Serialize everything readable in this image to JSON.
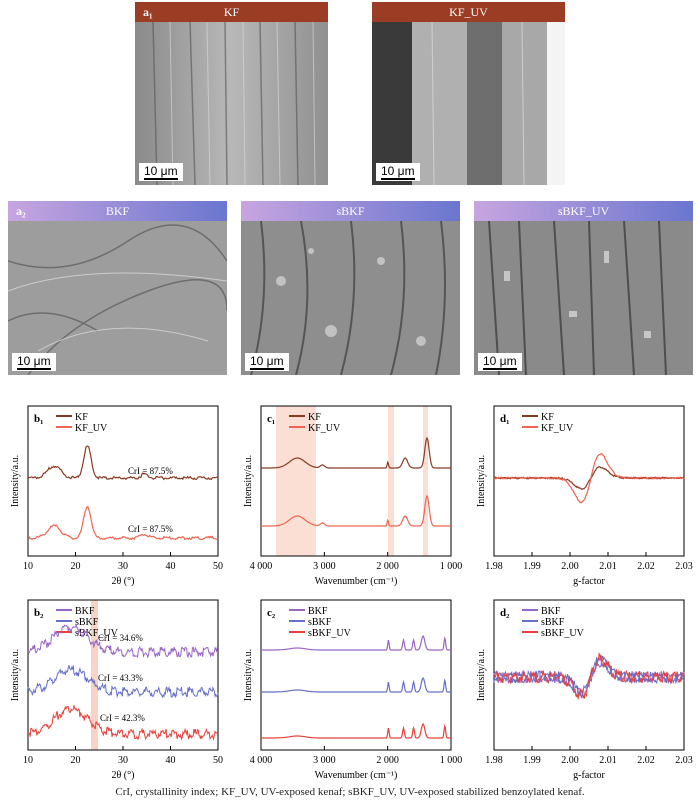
{
  "sem_top": [
    {
      "label": "a₁",
      "title": "KF",
      "scale": "10 μm",
      "header_color": "#9b3c25"
    },
    {
      "label": "",
      "title": "KF_UV",
      "scale": "10 μm",
      "header_color": "#9b3c25"
    }
  ],
  "sem_bottom": [
    {
      "label": "a₂",
      "title": "BKF",
      "scale": "10 μm",
      "header_color": "#7e6bc4"
    },
    {
      "label": "",
      "title": "sBKF",
      "scale": "10 μm",
      "header_color": "#7e6bc4"
    },
    {
      "label": "",
      "title": "sBKF_UV",
      "scale": "10 μm",
      "header_color": "#7e6bc4"
    }
  ],
  "panels": {
    "b1": {
      "label": "b₁",
      "ylabel": "Intensity/a.u.",
      "xlabel": "2θ (°)",
      "ticks": [
        "10",
        "20",
        "30",
        "40",
        "50"
      ],
      "legend": [
        "KF",
        "KF_UV"
      ],
      "annotations": [
        "CrI = 87.5%",
        "CrI = 87.5%"
      ]
    },
    "c1": {
      "label": "c₁",
      "ylabel": "Intensity/a.u.",
      "xlabel": "Wavenumber (cm⁻¹)",
      "ticks": [
        "4 000",
        "3 000",
        "2 000",
        "1 000"
      ],
      "legend": [
        "KF",
        "KF_UV"
      ]
    },
    "d1": {
      "label": "d₁",
      "ylabel": "Intensity/a.u.",
      "xlabel": "g-factor",
      "ticks": [
        "1.98",
        "1.99",
        "2.00",
        "2.01",
        "2.02",
        "2.03"
      ],
      "legend": [
        "KF",
        "KF_UV"
      ]
    },
    "b2": {
      "label": "b₂",
      "ylabel": "Intensity/a.u.",
      "xlabel": "2θ (°)",
      "ticks": [
        "10",
        "20",
        "30",
        "40",
        "50"
      ],
      "legend": [
        "BKF",
        "sBKF",
        "sBKF_UV"
      ],
      "annotations": [
        "CrI = 34.6%",
        "CrI = 43.3%",
        "CrI = 42.3%"
      ]
    },
    "c2": {
      "label": "c₂",
      "ylabel": "Intensity/a.u.",
      "xlabel": "Wavenumber (cm⁻¹)",
      "ticks": [
        "4 000",
        "3 000",
        "2 000",
        "1 000"
      ],
      "legend": [
        "BKF",
        "sBKF",
        "sBKF_UV"
      ]
    },
    "d2": {
      "label": "d₂",
      "ylabel": "Intensity/a.u.",
      "xlabel": "g-factor",
      "ticks": [
        "1.98",
        "1.99",
        "2.00",
        "2.01",
        "2.02",
        "2.03"
      ],
      "legend": [
        "BKF",
        "sBKF",
        "sBKF_UV"
      ]
    }
  },
  "colors": {
    "KF": "#8b3a22",
    "KF_UV": "#f0654f",
    "BKF": "#9a66c4",
    "sBKF": "#6670c8",
    "sBKF_UV": "#e8403a",
    "highlight": "#f8c8b8"
  },
  "caption": "CrI, crystallinity index; KF_UV,  UV-exposed kenaf; sBKF_UV, UV-exposed stabilized benzoylated kenaf."
}
